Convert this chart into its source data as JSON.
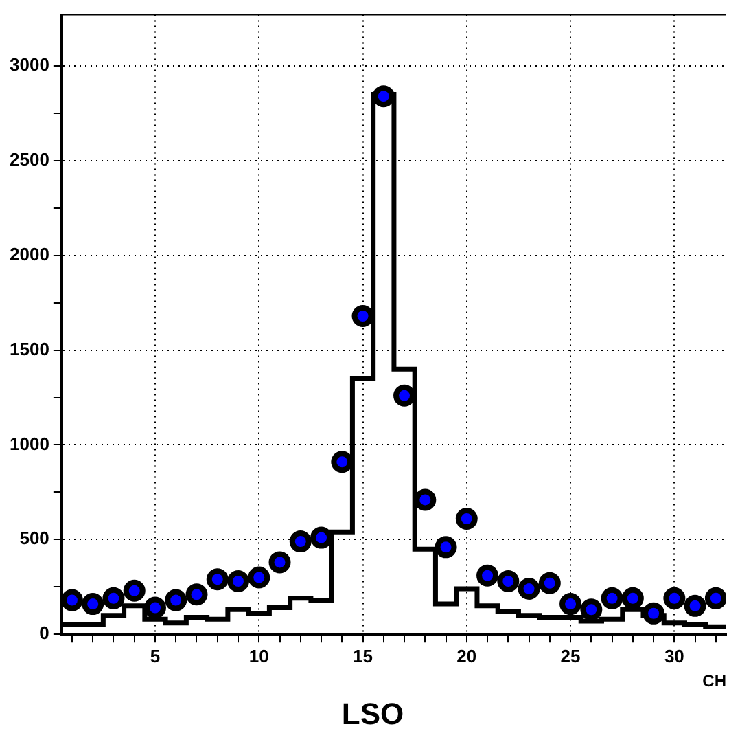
{
  "chart_data": {
    "type": "histogram",
    "title": "LSO",
    "xlabel": "CH",
    "series": [
      {
        "color": "#000000",
        "bins": [
          0.5,
          1.5,
          2.5,
          3.5,
          4.5,
          5.5,
          6.5,
          7.5,
          8.5,
          9.5,
          10.5,
          11.5,
          12.5,
          13.5,
          14.5,
          15.5,
          16.5,
          17.5,
          18.5,
          19.5,
          20.5,
          21.5,
          22.5,
          23.5,
          24.5,
          25.5,
          26.5,
          27.5,
          28.5,
          29.5,
          30.5,
          31.5,
          32.5
        ],
        "values": [
          50,
          50,
          100,
          150,
          80,
          60,
          90,
          80,
          130,
          110,
          140,
          190,
          180,
          540,
          1350,
          2850,
          1400,
          450,
          160,
          240,
          150,
          120,
          100,
          90,
          90,
          70,
          80,
          130,
          100,
          60,
          50,
          40
        ]
      },
      {
        "type": "scatter",
        "color": "#0000ff",
        "x": [
          1,
          2,
          3,
          4,
          5,
          6,
          7,
          8,
          9,
          10,
          11,
          12,
          13,
          14,
          15,
          16,
          17,
          18,
          19,
          20,
          21,
          22,
          23,
          24,
          25,
          26,
          27,
          28,
          29,
          30,
          31,
          32
        ],
        "values": [
          180,
          160,
          190,
          230,
          140,
          180,
          210,
          290,
          280,
          300,
          380,
          490,
          510,
          910,
          1680,
          2840,
          1260,
          710,
          460,
          610,
          310,
          280,
          240,
          270,
          160,
          130,
          190,
          190,
          110,
          190,
          150,
          190
        ]
      }
    ],
    "marker": "circle",
    "grid": true,
    "legend": false,
    "xlim": [
      0.5,
      32.5
    ],
    "xticks": [
      {
        "value": 1,
        "label": null
      },
      {
        "value": 2,
        "label": null
      },
      {
        "value": 3,
        "label": null
      },
      {
        "value": 4,
        "label": null
      },
      5,
      {
        "value": 6,
        "label": null
      },
      {
        "value": 7,
        "label": null
      },
      {
        "value": 8,
        "label": null
      },
      {
        "value": 9,
        "label": null
      },
      10,
      {
        "value": 11,
        "label": null
      },
      {
        "value": 12,
        "label": null
      },
      {
        "value": 13,
        "label": null
      },
      {
        "value": 14,
        "label": null
      },
      15,
      {
        "value": 16,
        "label": null
      },
      {
        "value": 17,
        "label": null
      },
      {
        "value": 18,
        "label": null
      },
      {
        "value": 19,
        "label": null
      },
      20,
      {
        "value": 21,
        "label": null
      },
      {
        "value": 22,
        "label": null
      },
      {
        "value": 23,
        "label": null
      },
      {
        "value": 24,
        "label": null
      },
      25,
      {
        "value": 26,
        "label": null
      },
      {
        "value": 27,
        "label": null
      },
      {
        "value": 28,
        "label": null
      },
      {
        "value": 29,
        "label": null
      },
      30,
      {
        "value": 31,
        "label": null
      },
      {
        "value": 32,
        "label": null
      }
    ],
    "ylim": [
      0,
      3270
    ],
    "yticks": [
      0,
      {
        "value": 250,
        "label": null
      },
      500,
      {
        "value": 750,
        "label": null
      },
      1000,
      {
        "value": 1250,
        "label": null
      },
      1500,
      {
        "value": 1750,
        "label": null
      },
      2000,
      {
        "value": 2250,
        "label": null
      },
      2500,
      {
        "value": 2750,
        "label": null
      },
      3000
    ]
  }
}
